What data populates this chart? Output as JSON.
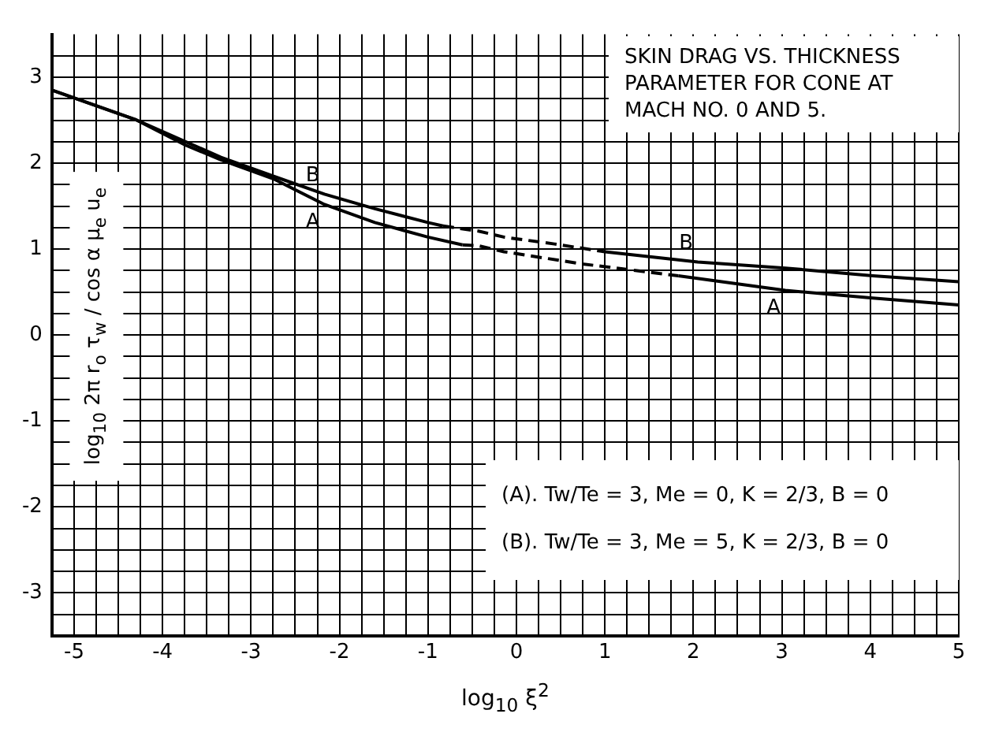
{
  "chart_data": {
    "type": "line",
    "title": "SKIN DRAG VS. THICKNESS PARAMETER FOR CONE AT MACH NO. 0 AND 5.",
    "xlabel": "log$_{10}$ ξ$^{2}$",
    "ylabel": "log$_{10}$ 2π r$_{o}$ τ$_{w}$ / cos α μ$_{e}$ u$_{e}$",
    "series": [
      {
        "name": "A",
        "color": "#000000",
        "line_style": "solid",
        "x": [
          -5.25,
          -4.31,
          -3.74,
          -3.34,
          -2.75,
          -2.17,
          -1.6,
          -1.0,
          -0.61
        ],
        "values": [
          2.85,
          2.51,
          2.21,
          2.04,
          1.82,
          1.52,
          1.31,
          1.14,
          1.05
        ]
      },
      {
        "color": "#000000",
        "line_style": "dashed",
        "x": [
          -0.61,
          -0.43,
          -0.14,
          0.73,
          1.83
        ],
        "values": [
          1.05,
          1.04,
          0.97,
          0.83,
          0.69
        ]
      },
      {
        "name": "A",
        "color": "#000000",
        "line_style": "solid",
        "x": [
          1.83,
          3.04,
          4.03,
          5.0
        ],
        "values": [
          0.69,
          0.52,
          0.43,
          0.35
        ]
      },
      {
        "name": "B",
        "color": "#000000",
        "line_style": "solid",
        "x": [
          -5.25,
          -4.31,
          -3.74,
          -3.34,
          -2.75,
          -2.17,
          -1.6,
          -1.0,
          -0.83
        ],
        "values": [
          2.85,
          2.51,
          2.25,
          2.07,
          1.85,
          1.64,
          1.47,
          1.31,
          1.27
        ]
      },
      {
        "color": "#000000",
        "line_style": "dashed",
        "x": [
          -0.83,
          -0.43,
          -0.14,
          0.43,
          1.0
        ],
        "values": [
          1.27,
          1.21,
          1.14,
          1.06,
          0.97
        ]
      },
      {
        "name": "B",
        "color": "#000000",
        "line_style": "solid",
        "x": [
          1.0,
          2.05,
          3.04,
          4.03,
          5.0
        ],
        "values": [
          0.97,
          0.85,
          0.78,
          0.69,
          0.62
        ]
      }
    ],
    "annotations": [
      "(A).  Tw/Te = 3,  Me = 0,  K = 2/3,  B = 0",
      "(B).  Tw/Te = 3,  Me = 5,  K = 2/3,  B = 0"
    ],
    "xlim": [
      -5.25,
      5
    ],
    "ylim": [
      -3.5,
      3.5
    ],
    "xticks": [
      -5,
      {
        "value": -4.75,
        "label": null
      },
      {
        "value": -4.5,
        "label": null
      },
      {
        "value": -4.25,
        "label": null
      },
      -4,
      {
        "value": -3.75,
        "label": null
      },
      {
        "value": -3.5,
        "label": null
      },
      {
        "value": -3.25,
        "label": null
      },
      -3,
      {
        "value": -2.75,
        "label": null
      },
      {
        "value": -2.5,
        "label": null
      },
      {
        "value": -2.25,
        "label": null
      },
      -2,
      {
        "value": -1.75,
        "label": null
      },
      {
        "value": -1.5,
        "label": null
      },
      {
        "value": -1.25,
        "label": null
      },
      -1,
      {
        "value": -0.75,
        "label": null
      },
      {
        "value": -0.5,
        "label": null
      },
      {
        "value": -0.25,
        "label": null
      },
      0,
      {
        "value": 0.25,
        "label": null
      },
      {
        "value": 0.5,
        "label": null
      },
      {
        "value": 0.75,
        "label": null
      },
      1,
      {
        "value": 1.25,
        "label": null
      },
      {
        "value": 1.5,
        "label": null
      },
      {
        "value": 1.75,
        "label": null
      },
      2,
      {
        "value": 2.25,
        "label": null
      },
      {
        "value": 2.5,
        "label": null
      },
      {
        "value": 2.75,
        "label": null
      },
      3,
      {
        "value": 3.25,
        "label": null
      },
      {
        "value": 3.5,
        "label": null
      },
      {
        "value": 3.75,
        "label": null
      },
      4,
      {
        "value": 4.25,
        "label": null
      },
      {
        "value": 4.5,
        "label": null
      },
      {
        "value": 4.75,
        "label": null
      },
      5
    ],
    "yticks": [
      {
        "value": -3.25,
        "label": null
      },
      -3,
      {
        "value": -2.75,
        "label": null
      },
      {
        "value": -2.5,
        "label": null
      },
      {
        "value": -2.25,
        "label": null
      },
      -2,
      {
        "value": -1.75,
        "label": null
      },
      {
        "value": -1.5,
        "label": null
      },
      {
        "value": -1.25,
        "label": null
      },
      -1,
      {
        "value": -0.75,
        "label": null
      },
      {
        "value": -0.5,
        "label": null
      },
      {
        "value": -0.25,
        "label": null
      },
      0,
      {
        "value": 0.25,
        "label": null
      },
      {
        "value": 0.5,
        "label": null
      },
      {
        "value": 0.75,
        "label": null
      },
      1,
      {
        "value": 1.25,
        "label": null
      },
      {
        "value": 1.5,
        "label": null
      },
      {
        "value": 1.75,
        "label": null
      },
      2,
      {
        "value": 2.25,
        "label": null
      },
      {
        "value": 2.5,
        "label": null
      },
      {
        "value": 2.75,
        "label": null
      },
      3,
      {
        "value": 3.25,
        "label": null
      }
    ],
    "grid": true,
    "legend": false,
    "marker": "none"
  }
}
